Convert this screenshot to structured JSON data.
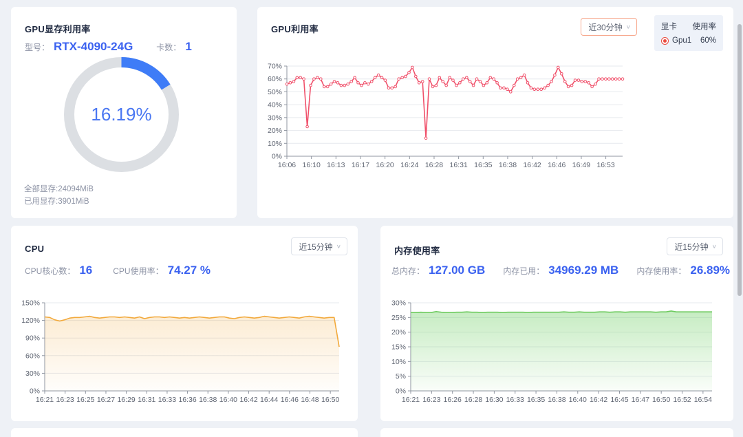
{
  "panels": {
    "gpu_memory": {
      "title": "GPU显存利用率",
      "model_label": "型号：",
      "model_value": "RTX-4090-24G",
      "card_count_label": "卡数：",
      "card_count_value": "1",
      "percent_text": "16.19%",
      "percent_value": 16.19,
      "total_text": "全部显存:24094MiB",
      "used_text": "已用显存:3901MiB",
      "arc_color": "#3e7cf7",
      "track_color": "#dcdfe3"
    },
    "gpu_util": {
      "title": "GPU利用率",
      "dropdown_value": "近30分钟",
      "legend": {
        "col_card": "显卡",
        "col_usage": "使用率",
        "row_name": "Gpu1",
        "row_value": "60%"
      }
    },
    "cpu": {
      "title": "CPU",
      "dropdown_value": "近15分钟",
      "cores_label": "CPU核心数：",
      "cores_value": "16",
      "usage_label": "CPU使用率：",
      "usage_value": "74.27 %"
    },
    "memory": {
      "title": "内存使用率",
      "dropdown_value": "近15分钟",
      "total_label": "总内存：",
      "total_value": "127.00 GB",
      "used_label": "内存已用：",
      "used_value": "34969.29 MB",
      "usage_label": "内存使用率：",
      "usage_value": "26.89%"
    }
  },
  "colors": {
    "accent_blue": "#3b62f0",
    "gpu_line": "#f0516b",
    "cpu_line": "#f2a93b",
    "mem_line": "#6ecb5f",
    "grid": "#e6e9ee",
    "axis": "#8f95a0",
    "tick_text": "#5f6572"
  },
  "chart_data": [
    {
      "type": "line",
      "title": "GPU利用率",
      "xlabel": "",
      "ylabel": "",
      "legend_entries": [
        "Gpu1"
      ],
      "line_color": "#f0516b",
      "markers": true,
      "grid": true,
      "ylim": [
        0,
        70
      ],
      "y_ticks": [
        [
          0,
          "0%"
        ],
        [
          10,
          "10%"
        ],
        [
          20,
          "20%"
        ],
        [
          30,
          "30%"
        ],
        [
          40,
          "40%"
        ],
        [
          50,
          "50%"
        ],
        [
          60,
          "60%"
        ],
        [
          70,
          "70%"
        ]
      ],
      "x_labels": [
        "16:06",
        "16:10",
        "16:13",
        "16:17",
        "16:20",
        "16:24",
        "16:28",
        "16:31",
        "16:35",
        "16:38",
        "16:42",
        "16:46",
        "16:49",
        "16:53"
      ],
      "x_span": 0.95,
      "values": [
        56,
        57,
        58,
        61,
        61,
        60,
        23,
        55,
        60,
        61,
        60,
        54,
        54,
        56,
        58,
        57,
        55,
        55,
        56,
        58,
        61,
        57,
        55,
        57,
        56,
        58,
        61,
        63,
        61,
        59,
        53,
        53,
        54,
        60,
        61,
        62,
        65,
        69,
        62,
        57,
        58,
        14,
        60,
        54,
        55,
        61,
        58,
        55,
        61,
        59,
        55,
        57,
        60,
        61,
        58,
        55,
        60,
        58,
        55,
        57,
        61,
        60,
        57,
        53,
        53,
        52,
        50,
        55,
        60,
        61,
        63,
        57,
        53,
        52,
        52,
        52,
        53,
        55,
        58,
        63,
        69,
        64,
        58,
        54,
        55,
        59,
        59,
        58,
        58,
        57,
        54,
        56,
        60,
        60,
        60,
        60,
        60,
        60,
        60,
        60
      ]
    },
    {
      "type": "area",
      "title": "CPU",
      "xlabel": "",
      "ylabel": "",
      "line_color": "#f2a93b",
      "fill_from": "rgba(242,169,59,0.22)",
      "fill_to": "rgba(242,169,59,0.02)",
      "markers": false,
      "grid": true,
      "ylim": [
        0,
        150
      ],
      "y_ticks": [
        [
          0,
          "0%"
        ],
        [
          30,
          "30%"
        ],
        [
          60,
          "60%"
        ],
        [
          90,
          "90%"
        ],
        [
          120,
          "120%"
        ],
        [
          150,
          "150%"
        ]
      ],
      "x_labels": [
        "16:21",
        "16:23",
        "16:25",
        "16:27",
        "16:29",
        "16:31",
        "16:33",
        "16:36",
        "16:38",
        "16:40",
        "16:42",
        "16:44",
        "16:46",
        "16:48",
        "16:50"
      ],
      "x_span": 0.97,
      "values": [
        126,
        125,
        121,
        119,
        121,
        124,
        125,
        125,
        126,
        127,
        125,
        124,
        125,
        126,
        126,
        125,
        126,
        125,
        124,
        126,
        123,
        125,
        126,
        126,
        125,
        126,
        125,
        124,
        125,
        124,
        125,
        126,
        125,
        124,
        125,
        126,
        126,
        124,
        123,
        125,
        126,
        125,
        124,
        125,
        127,
        126,
        125,
        124,
        125,
        126,
        125,
        124,
        126,
        127,
        126,
        125,
        124,
        125,
        125,
        75
      ]
    },
    {
      "type": "area",
      "title": "内存使用率",
      "xlabel": "",
      "ylabel": "",
      "line_color": "#6ecb5f",
      "fill_from": "rgba(120,210,110,0.42)",
      "fill_to": "rgba(120,210,110,0.04)",
      "markers": false,
      "grid": true,
      "ylim": [
        0,
        30
      ],
      "y_ticks": [
        [
          0,
          "0%"
        ],
        [
          5,
          "5%"
        ],
        [
          10,
          "10%"
        ],
        [
          15,
          "15%"
        ],
        [
          20,
          "20%"
        ],
        [
          25,
          "25%"
        ],
        [
          30,
          "30%"
        ]
      ],
      "x_labels": [
        "16:21",
        "16:23",
        "16:26",
        "16:28",
        "16:30",
        "16:33",
        "16:35",
        "16:38",
        "16:40",
        "16:42",
        "16:45",
        "16:47",
        "16:50",
        "16:52",
        "16:54"
      ],
      "x_span": 0.97,
      "values": [
        26.7,
        26.7,
        26.8,
        26.7,
        26.7,
        27.0,
        26.8,
        26.7,
        26.7,
        26.8,
        26.8,
        26.9,
        26.8,
        26.8,
        26.7,
        26.8,
        26.8,
        26.8,
        26.7,
        26.8,
        26.8,
        26.8,
        26.8,
        26.7,
        26.8,
        26.8,
        26.8,
        26.8,
        26.8,
        26.8,
        26.9,
        26.8,
        26.8,
        26.9,
        26.8,
        26.8,
        26.8,
        26.9,
        26.9,
        26.8,
        26.9,
        26.9,
        26.8,
        26.9,
        26.9,
        26.9,
        26.9,
        26.9,
        26.8,
        26.9,
        26.9,
        27.2,
        26.9,
        26.9,
        26.9,
        26.9,
        26.9,
        26.9,
        26.9,
        26.9
      ]
    }
  ]
}
